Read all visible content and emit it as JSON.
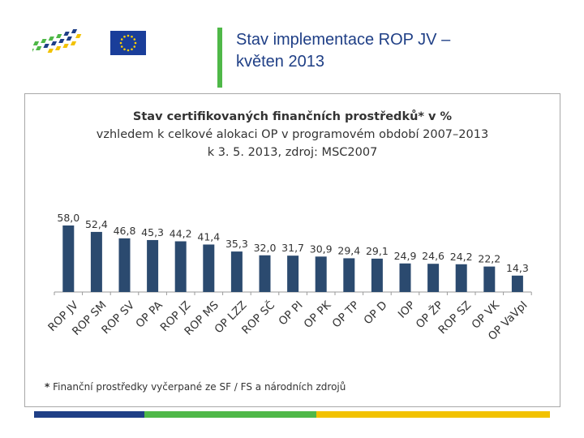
{
  "slide": {
    "title_line1": "Stav implementace ROP JV –",
    "title_line2": "květen 2013"
  },
  "logo": {
    "icon": "regional-logo-icon"
  },
  "eu_flag": {
    "icon": "eu-flag-icon",
    "color": "#1a3e9a",
    "star_color": "#ffd200"
  },
  "chart_data": {
    "type": "bar",
    "title": "Stav certifikovaných finančních prostředků* v %",
    "subtitle_line1": "vzhledem k celkové alokaci OP v programovém období 2007–2013",
    "subtitle_line2": "k 3. 5. 2013, zdroj: MSC2007",
    "categories": [
      "ROP JV",
      "ROP SM",
      "ROP SV",
      "OP PA",
      "ROP JZ",
      "ROP MS",
      "OP LZZ",
      "ROP SČ",
      "OP PI",
      "OP PK",
      "OP TP",
      "OP D",
      "IOP",
      "OP ŽP",
      "ROP SZ",
      "OP VK",
      "OP VaVpI"
    ],
    "values": [
      58.0,
      52.4,
      46.8,
      45.3,
      44.2,
      41.4,
      35.3,
      32.0,
      31.7,
      30.9,
      29.4,
      29.1,
      24.9,
      24.6,
      24.2,
      22.2,
      14.3
    ],
    "value_labels": [
      "58,0",
      "52,4",
      "46,8",
      "45,3",
      "44,2",
      "41,4",
      "35,3",
      "32,0",
      "31,7",
      "30,9",
      "29,4",
      "29,1",
      "24,9",
      "24,6",
      "24,2",
      "22,2",
      "14,3"
    ],
    "bar_color": "#2b4a6f",
    "ylim": [
      0,
      60
    ],
    "xlabel": "",
    "ylabel": "",
    "footnote_star": "*",
    "footnote": "Finanční prostředky vyčerpané ze SF / FS a národních zdrojů"
  },
  "footer": {
    "colors": [
      "#1f3f86",
      "#4fb848",
      "#f2c200"
    ]
  }
}
